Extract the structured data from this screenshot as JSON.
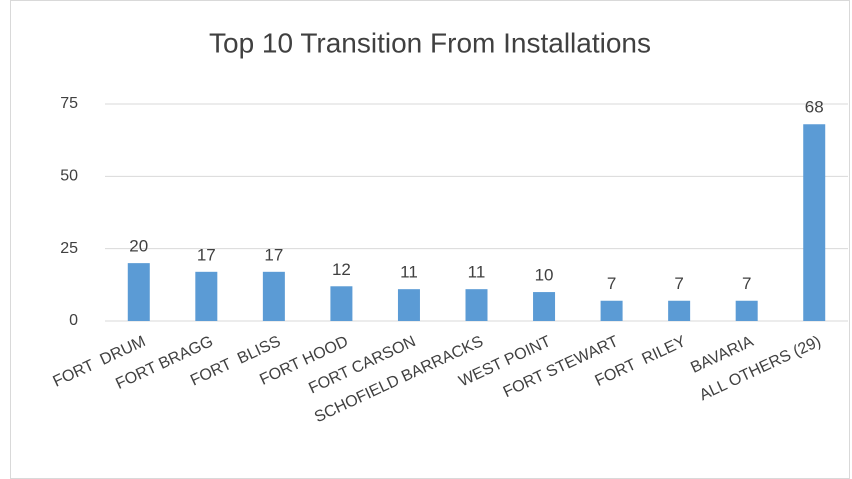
{
  "chart_data": {
    "type": "bar",
    "title": "Top 10 Transition From Installations",
    "categories": [
      "FORT  DRUM",
      "FORT BRAGG",
      "FORT  BLISS",
      "FORT HOOD",
      "FORT CARSON",
      "SCHOFIELD BARRACKS",
      "WEST POINT",
      "FORT STEWART",
      "FORT  RILEY",
      "BAVARIA",
      "ALL OTHERS (29)"
    ],
    "values": [
      20,
      17,
      17,
      12,
      11,
      11,
      10,
      7,
      7,
      7,
      68
    ],
    "color": "#5b9bd5",
    "ylim": [
      0,
      75
    ],
    "yticks": [
      0,
      25,
      50,
      75
    ],
    "grid": true
  }
}
